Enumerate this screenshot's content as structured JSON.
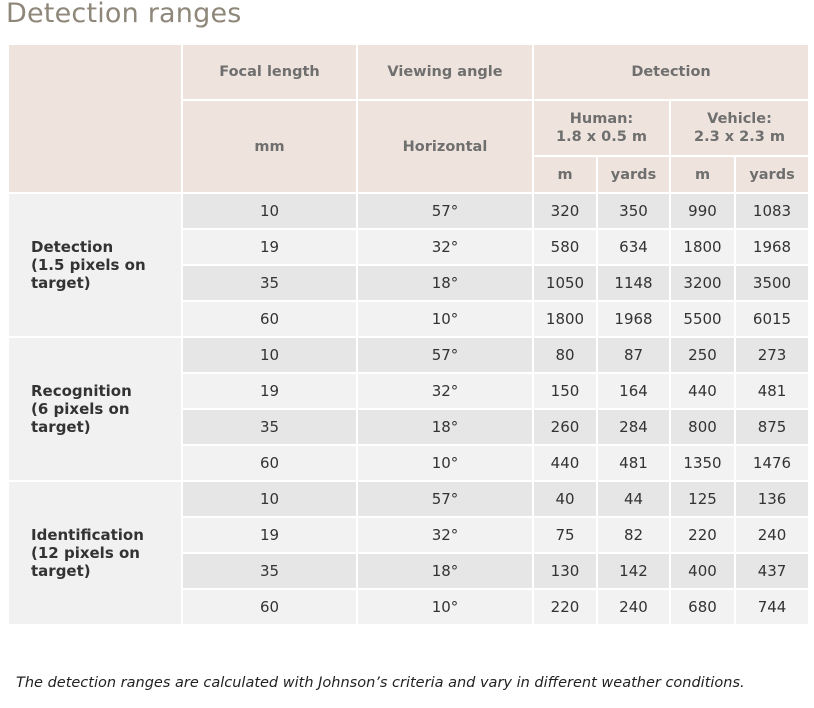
{
  "title": "Detection ranges",
  "header": {
    "focal_length": "Focal length",
    "viewing_angle": "Viewing angle",
    "detection": "Detection",
    "mm": "mm",
    "horizontal": "Horizontal",
    "human_line1": "Human:",
    "human_line2": "1.8 x 0.5 m",
    "vehicle_line1": "Vehicle:",
    "vehicle_line2": "2.3 x 2.3 m",
    "m": "m",
    "yards": "yards"
  },
  "groups": [
    {
      "label_lines": [
        "Detection",
        "(1.5 pixels on",
        "target)"
      ],
      "rows": [
        [
          "10",
          "57°",
          "320",
          "350",
          "990",
          "1083"
        ],
        [
          "19",
          "32°",
          "580",
          "634",
          "1800",
          "1968"
        ],
        [
          "35",
          "18°",
          "1050",
          "1148",
          "3200",
          "3500"
        ],
        [
          "60",
          "10°",
          "1800",
          "1968",
          "5500",
          "6015"
        ]
      ]
    },
    {
      "label_lines": [
        "Recognition",
        "(6 pixels on",
        "target)"
      ],
      "rows": [
        [
          "10",
          "57°",
          "80",
          "87",
          "250",
          "273"
        ],
        [
          "19",
          "32°",
          "150",
          "164",
          "440",
          "481"
        ],
        [
          "35",
          "18°",
          "260",
          "284",
          "800",
          "875"
        ],
        [
          "60",
          "10°",
          "440",
          "481",
          "1350",
          "1476"
        ]
      ]
    },
    {
      "label_lines": [
        "Identification",
        "(12 pixels on",
        "target)"
      ],
      "rows": [
        [
          "10",
          "57°",
          "40",
          "44",
          "125",
          "136"
        ],
        [
          "19",
          "32°",
          "75",
          "82",
          "220",
          "240"
        ],
        [
          "35",
          "18°",
          "130",
          "142",
          "400",
          "437"
        ],
        [
          "60",
          "10°",
          "220",
          "240",
          "680",
          "744"
        ]
      ]
    }
  ],
  "footnote": "The detection ranges are calculated with Johnson’s criteria and vary in different weather conditions."
}
